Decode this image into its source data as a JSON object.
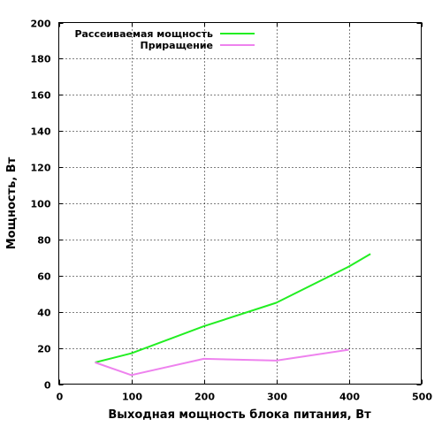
{
  "chart_data": {
    "type": "line",
    "xlabel": "Выходная мощность блока питания, Вт",
    "ylabel": "Мощность, Вт",
    "xlim": [
      0,
      500
    ],
    "ylim": [
      0,
      200
    ],
    "x_ticks": [
      "0",
      "100",
      "200",
      "300",
      "400",
      "500"
    ],
    "y_ticks": [
      "0",
      "20",
      "40",
      "60",
      "80",
      "100",
      "120",
      "140",
      "160",
      "180",
      "200"
    ],
    "grid": true,
    "legend_position": "top-left",
    "series": [
      {
        "name": "Рассеиваемая мощность",
        "color": "#22ee22",
        "x": [
          50,
          100,
          200,
          300,
          400,
          430
        ],
        "y": [
          12,
          17,
          32,
          45,
          65,
          72
        ]
      },
      {
        "name": "Приращение",
        "color": "#ee82ee",
        "x": [
          50,
          100,
          200,
          300,
          400
        ],
        "y": [
          12,
          5,
          14,
          13,
          19
        ]
      }
    ]
  }
}
